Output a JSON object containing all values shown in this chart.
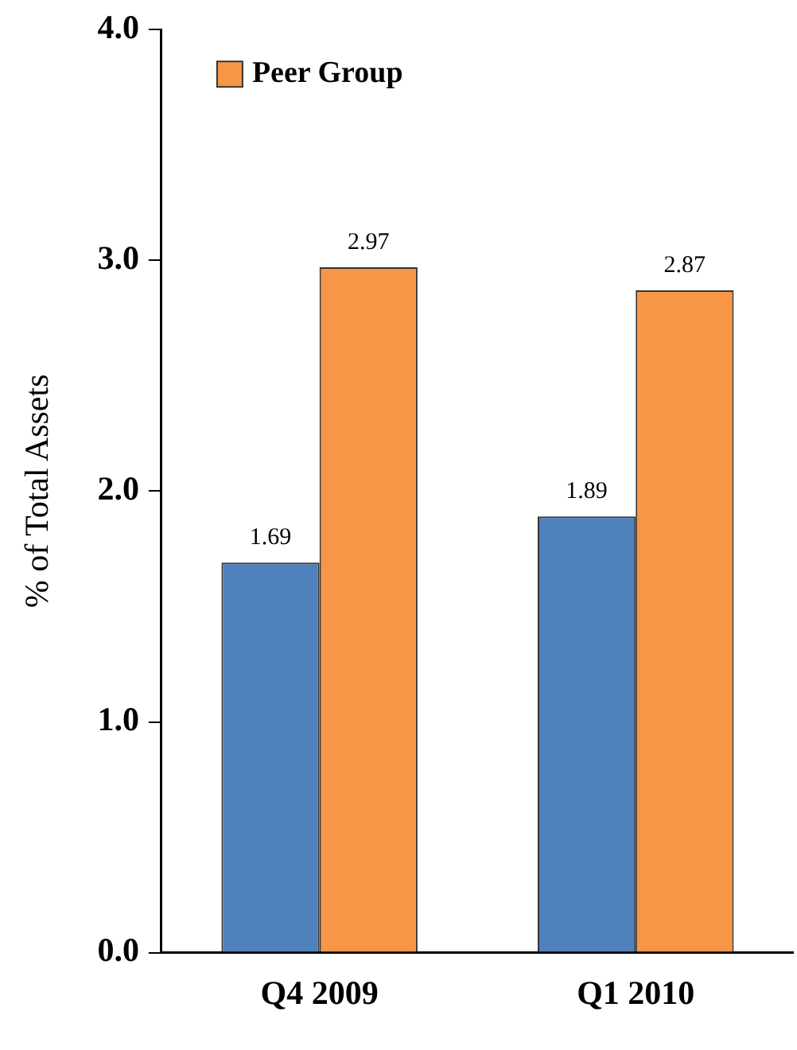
{
  "chart_data": {
    "type": "bar",
    "ylabel": "% of Total Assets",
    "categories": [
      "Q4 2009",
      "Q1 2010"
    ],
    "series": [
      {
        "color": "#4f81bd",
        "values": [
          1.69,
          1.89
        ]
      },
      {
        "name": "Peer Group",
        "color": "#f79646",
        "values": [
          2.97,
          2.87
        ]
      }
    ],
    "ylim": [
      0,
      4
    ],
    "yticks": [
      {
        "value": 0,
        "label": "0.0"
      },
      {
        "value": 1,
        "label": "1.0"
      },
      {
        "value": 2,
        "label": "2.0"
      },
      {
        "value": 3,
        "label": "3.0"
      },
      {
        "value": 4,
        "label": "4.0"
      }
    ],
    "grid": false,
    "legend": "top left",
    "data_labels": true
  }
}
